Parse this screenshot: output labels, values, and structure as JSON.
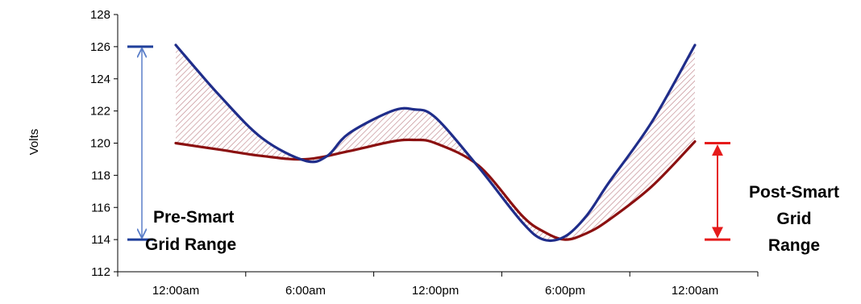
{
  "chart_data": {
    "type": "line",
    "title": "",
    "xlabel": "",
    "ylabel": "Volts",
    "ylim": [
      112,
      128
    ],
    "yticks": [
      112,
      114,
      116,
      118,
      120,
      122,
      124,
      126,
      128
    ],
    "categories": [
      "12:00am",
      "6:00am",
      "12:00pm",
      "6:00pm",
      "12:00am"
    ],
    "x_hours": [
      0,
      6,
      12,
      18,
      24
    ],
    "grid": false,
    "series": [
      {
        "name": "",
        "color": "#1f2d8a",
        "x": [
          0,
          2,
          4,
          6,
          7,
          8,
          10,
          11,
          12,
          14,
          16,
          17,
          18,
          19,
          20,
          22,
          24
        ],
        "values": [
          126.1,
          123.0,
          120.3,
          118.9,
          119.2,
          120.6,
          122.0,
          122.1,
          121.6,
          118.5,
          115.1,
          114.0,
          114.2,
          115.5,
          117.5,
          121.3,
          126.1
        ]
      },
      {
        "name": "",
        "color": "#8b1010",
        "x": [
          0,
          2,
          4,
          6,
          8,
          10,
          11,
          12,
          14,
          16,
          17,
          18,
          19,
          20,
          22,
          24
        ],
        "values": [
          120.0,
          119.6,
          119.2,
          119.0,
          119.5,
          120.1,
          120.2,
          120.0,
          118.6,
          115.5,
          114.5,
          114.0,
          114.4,
          115.2,
          117.3,
          120.1
        ]
      }
    ],
    "annotations": {
      "pre_range": {
        "label_line1": "Pre-Smart",
        "label_line2": "Grid Range",
        "from": 114,
        "to": 126,
        "color": "#1f3f9a",
        "arrow_color": "#5b7fc9"
      },
      "post_range": {
        "label_line1": "Post-Smart",
        "label_line2": "Grid",
        "label_line3": "Range",
        "from": 114,
        "to": 120,
        "color": "#e51b1b"
      }
    },
    "shade_color": "#c0868c"
  }
}
